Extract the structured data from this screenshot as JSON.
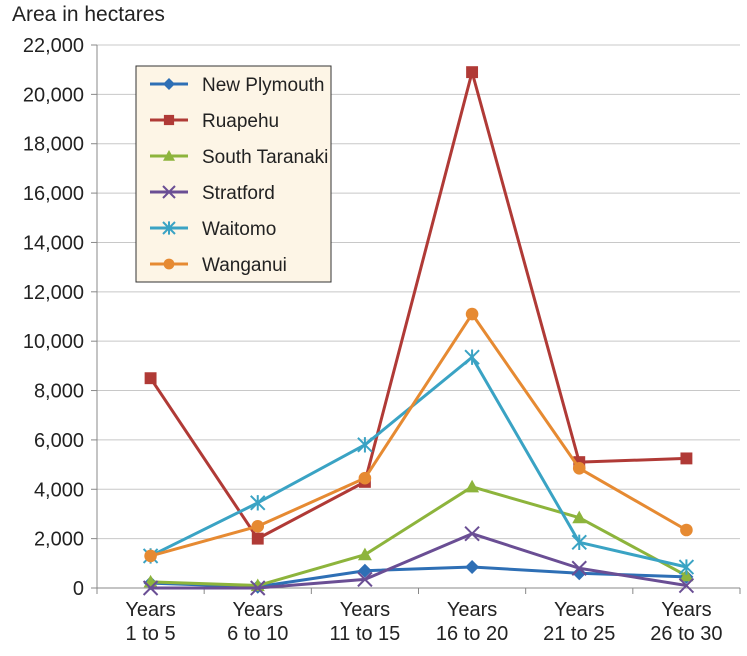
{
  "chart_data": {
    "type": "line",
    "title": "",
    "ylabel": "Area in hectares",
    "xlabel": "",
    "ylim": [
      0,
      22000
    ],
    "y_ticks": [
      0,
      2000,
      4000,
      6000,
      8000,
      10000,
      12000,
      14000,
      16000,
      18000,
      20000,
      22000
    ],
    "y_tick_labels": [
      "0",
      "2,000",
      "4,000",
      "6,000",
      "8,000",
      "10,000",
      "12,000",
      "14,000",
      "16,000",
      "18,000",
      "20,000",
      "22,000"
    ],
    "categories": [
      [
        "Years",
        "1 to 5"
      ],
      [
        "Years",
        "6 to 10"
      ],
      [
        "Years",
        "11 to 15"
      ],
      [
        "Years",
        "16 to 20"
      ],
      [
        "Years",
        "21 to 25"
      ],
      [
        "Years",
        "26 to 30"
      ]
    ],
    "grid": "horizontal",
    "legend_position": "top-left",
    "series": [
      {
        "name": "New Plymouth",
        "color": "#2e6fb5",
        "marker": "diamond",
        "values": [
          200,
          50,
          700,
          850,
          600,
          450
        ]
      },
      {
        "name": "Ruapehu",
        "color": "#b03a36",
        "marker": "square",
        "values": [
          8500,
          2000,
          4300,
          20900,
          5100,
          5250
        ]
      },
      {
        "name": "South Taranaki",
        "color": "#8db43c",
        "marker": "triangle",
        "values": [
          250,
          100,
          1350,
          4100,
          2850,
          500
        ]
      },
      {
        "name": "Stratford",
        "color": "#6a4e94",
        "marker": "x",
        "values": [
          0,
          0,
          350,
          2200,
          800,
          100
        ]
      },
      {
        "name": "Waitomo",
        "color": "#3aa3c4",
        "marker": "star",
        "values": [
          1300,
          3450,
          5800,
          9350,
          1850,
          850
        ]
      },
      {
        "name": "Wanganui",
        "color": "#e68a32",
        "marker": "circle",
        "values": [
          1300,
          2500,
          4450,
          11100,
          4850,
          2350
        ]
      }
    ]
  }
}
